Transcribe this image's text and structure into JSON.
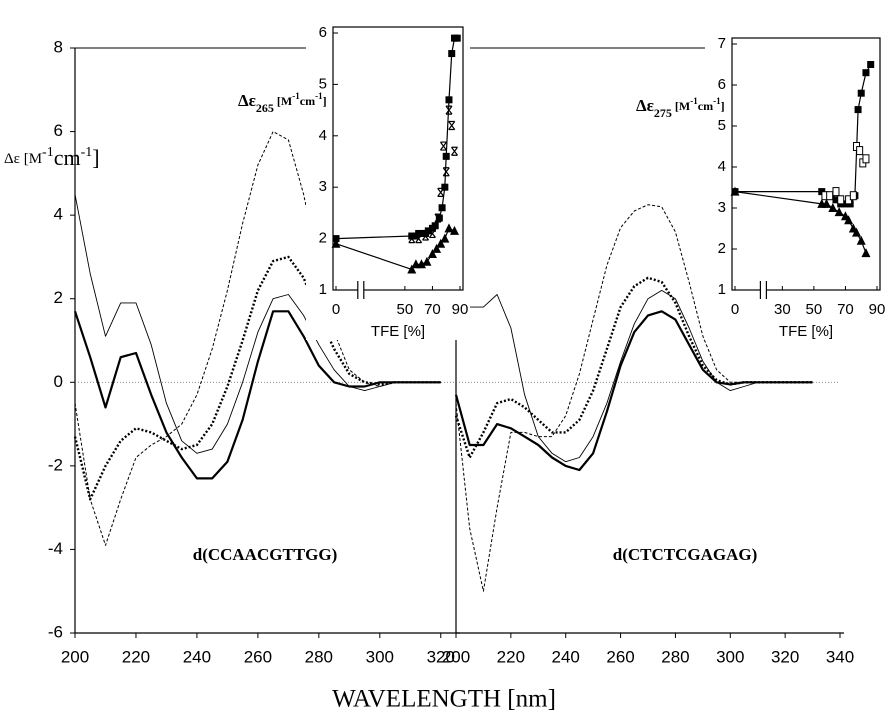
{
  "chart_data": [
    {
      "type": "line",
      "y_label": [
        "Δε [M",
        "-1",
        "cm",
        "-1",
        "]"
      ],
      "x_label": "WAVELENGTH  [nm]",
      "annotation": "d(CCAACGTTGG)",
      "xlim": [
        200,
        325
      ],
      "xticks": [
        200,
        220,
        240,
        260,
        280,
        300,
        320
      ],
      "ylim": [
        -6,
        8
      ],
      "yticks": [
        -6,
        -4,
        -2,
        0,
        2,
        4,
        6,
        8
      ],
      "zero_line": true,
      "x": [
        200,
        205,
        210,
        215,
        220,
        225,
        230,
        235,
        240,
        245,
        250,
        255,
        260,
        265,
        270,
        275,
        280,
        285,
        290,
        295,
        300,
        305,
        310,
        320
      ],
      "series": [
        {
          "color": "#000000",
          "style": "dashed",
          "values": [
            -0.5,
            -2.8,
            -3.9,
            -2.8,
            -1.8,
            -1.5,
            -1.3,
            -1.0,
            -0.3,
            0.8,
            2.2,
            3.8,
            5.2,
            6.0,
            5.8,
            4.5,
            2.8,
            1.2,
            0.3,
            0.0,
            -0.1,
            0.0,
            0.0,
            0.0
          ]
        },
        {
          "color": "#000000",
          "style": "dotted-bold",
          "values": [
            -1.3,
            -2.8,
            -2.0,
            -1.4,
            -1.1,
            -1.2,
            -1.4,
            -1.6,
            -1.5,
            -1.0,
            -0.1,
            1.0,
            2.2,
            2.9,
            3.0,
            2.5,
            1.6,
            0.8,
            0.2,
            0.0,
            -0.05,
            0.0,
            0.0,
            0.0
          ]
        },
        {
          "color": "#000000",
          "style": "thin",
          "values": [
            4.5,
            2.6,
            1.1,
            1.9,
            1.9,
            0.9,
            -0.5,
            -1.4,
            -1.7,
            -1.6,
            -1.0,
            0.0,
            1.2,
            2.0,
            2.1,
            1.6,
            0.9,
            0.3,
            -0.1,
            -0.2,
            -0.1,
            0.0,
            0.0,
            0.0
          ]
        },
        {
          "color": "#000000",
          "style": "bold",
          "values": [
            1.7,
            0.6,
            -0.6,
            0.6,
            0.7,
            -0.3,
            -1.2,
            -1.8,
            -2.3,
            -2.3,
            -1.9,
            -0.9,
            0.5,
            1.7,
            1.7,
            1.1,
            0.4,
            0.0,
            -0.1,
            -0.1,
            0.0,
            0.0,
            0.0,
            0.0
          ]
        }
      ]
    },
    {
      "type": "line",
      "annotation": "d(CTCTCGAGAG)",
      "xlim": [
        200,
        340
      ],
      "xticks": [
        200,
        220,
        240,
        260,
        280,
        300,
        320,
        340
      ],
      "ylim": [
        -6,
        8
      ],
      "zero_line": true,
      "x": [
        200,
        205,
        210,
        215,
        220,
        225,
        230,
        235,
        240,
        245,
        250,
        255,
        260,
        265,
        270,
        275,
        280,
        285,
        290,
        295,
        300,
        305,
        310,
        320,
        330
      ],
      "series": [
        {
          "color": "#000000",
          "style": "dashed",
          "values": [
            -0.5,
            -3.5,
            -5.0,
            -3.0,
            -1.2,
            -1.2,
            -1.3,
            -1.3,
            -0.8,
            0.2,
            1.5,
            2.8,
            3.7,
            4.1,
            4.25,
            4.2,
            3.6,
            2.4,
            1.1,
            0.3,
            0.0,
            0.0,
            0.0,
            0.0,
            0.0
          ]
        },
        {
          "color": "#000000",
          "style": "dotted-bold",
          "values": [
            -0.8,
            -1.8,
            -1.2,
            -0.5,
            -0.4,
            -0.6,
            -0.9,
            -1.2,
            -1.2,
            -0.9,
            -0.2,
            0.8,
            1.8,
            2.3,
            2.5,
            2.4,
            1.9,
            1.1,
            0.4,
            0.05,
            -0.05,
            0.0,
            0.0,
            0.0,
            0.0
          ]
        },
        {
          "color": "#000000",
          "style": "thin",
          "values": [
            2.1,
            1.8,
            1.8,
            2.1,
            1.3,
            -0.3,
            -1.3,
            -1.7,
            -1.9,
            -1.8,
            -1.3,
            -0.5,
            0.5,
            1.4,
            2.0,
            2.2,
            2.0,
            1.3,
            0.5,
            0.0,
            -0.2,
            -0.1,
            0.0,
            0.0,
            0.0
          ]
        },
        {
          "color": "#000000",
          "style": "bold",
          "values": [
            -0.3,
            -1.5,
            -1.5,
            -1.0,
            -1.1,
            -1.3,
            -1.5,
            -1.8,
            -2.0,
            -2.1,
            -1.7,
            -0.7,
            0.4,
            1.2,
            1.6,
            1.7,
            1.5,
            0.9,
            0.3,
            0.0,
            -0.05,
            0.0,
            0.0,
            0.0,
            0.0
          ]
        }
      ]
    },
    {
      "type": "scatter",
      "y_label": [
        "Δε",
        "265",
        " [M",
        "-1",
        "cm",
        "-1",
        "]"
      ],
      "x_label": "TFE [%]",
      "x_break": true,
      "xlim": [
        0,
        90
      ],
      "xticks": [
        0,
        50,
        70,
        90
      ],
      "ylim": [
        1,
        6
      ],
      "yticks": [
        1,
        2,
        3,
        4,
        5,
        6
      ],
      "series": [
        {
          "color": "#000000",
          "marker": "square-filled",
          "line": true,
          "x": [
            0,
            55,
            58,
            60,
            63,
            65,
            67,
            70,
            72,
            75,
            77,
            79,
            80,
            82,
            84,
            86,
            88
          ],
          "values": [
            2.0,
            2.05,
            2.05,
            2.1,
            2.1,
            2.1,
            2.15,
            2.2,
            2.25,
            2.4,
            2.6,
            3.0,
            3.6,
            4.7,
            5.6,
            5.9,
            5.9
          ]
        },
        {
          "color": "#000000",
          "marker": "asterisk",
          "line": false,
          "x": [
            55,
            60,
            65,
            70,
            74,
            76,
            78,
            80,
            82,
            84,
            86
          ],
          "values": [
            2.0,
            2.0,
            2.05,
            2.1,
            2.4,
            2.9,
            3.8,
            3.3,
            4.5,
            4.2,
            3.7
          ]
        },
        {
          "color": "#000000",
          "marker": "triangle",
          "line": true,
          "x": [
            0,
            55,
            58,
            62,
            66,
            70,
            73,
            76,
            79,
            82,
            86
          ],
          "values": [
            1.9,
            1.4,
            1.5,
            1.5,
            1.55,
            1.7,
            1.8,
            1.9,
            2.0,
            2.2,
            2.15
          ]
        }
      ]
    },
    {
      "type": "scatter",
      "y_label": [
        "Δε",
        "275",
        " [M",
        "-1",
        "cm",
        "-1",
        "]"
      ],
      "x_label": "TFE [%]",
      "x_break": true,
      "xlim": [
        0,
        90
      ],
      "xticks": [
        0,
        30,
        50,
        70,
        90
      ],
      "ylim": [
        1,
        7
      ],
      "yticks": [
        1,
        2,
        3,
        4,
        5,
        6,
        7
      ],
      "series": [
        {
          "color": "#000000",
          "marker": "square-filled",
          "line": true,
          "x": [
            0,
            55,
            58,
            61,
            64,
            67,
            70,
            73,
            76,
            78,
            80,
            83,
            86
          ],
          "values": [
            3.4,
            3.4,
            3.3,
            3.3,
            3.2,
            3.1,
            3.1,
            3.1,
            3.3,
            5.4,
            5.8,
            6.3,
            6.5
          ]
        },
        {
          "color": "#000000",
          "marker": "square-open",
          "line": false,
          "x": [
            57,
            60,
            64,
            67,
            72,
            75,
            77,
            79,
            81,
            83
          ],
          "values": [
            3.3,
            3.3,
            3.4,
            3.2,
            3.2,
            3.3,
            4.5,
            4.4,
            4.1,
            4.2
          ]
        },
        {
          "color": "#000000",
          "marker": "triangle",
          "line": true,
          "x": [
            0,
            55,
            58,
            62,
            66,
            70,
            72,
            75,
            77,
            80,
            83
          ],
          "values": [
            3.4,
            3.1,
            3.1,
            3.0,
            2.9,
            2.8,
            2.7,
            2.5,
            2.4,
            2.2,
            1.9
          ]
        }
      ]
    }
  ]
}
